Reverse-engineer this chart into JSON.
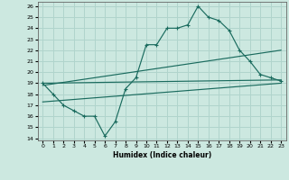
{
  "xlabel": "Humidex (Indice chaleur)",
  "bg_color": "#cce8e0",
  "grid_color": "#b0d4cc",
  "line_color": "#1a6b5e",
  "xlim": [
    -0.5,
    23.5
  ],
  "ylim": [
    13.8,
    26.4
  ],
  "xticks": [
    0,
    1,
    2,
    3,
    4,
    5,
    6,
    7,
    8,
    9,
    10,
    11,
    12,
    13,
    14,
    15,
    16,
    17,
    18,
    19,
    20,
    21,
    22,
    23
  ],
  "yticks": [
    14,
    15,
    16,
    17,
    18,
    19,
    20,
    21,
    22,
    23,
    24,
    25,
    26
  ],
  "line1_x": [
    0,
    1,
    2,
    3,
    4,
    5,
    6,
    7,
    8,
    9,
    10,
    11,
    12,
    13,
    14,
    15,
    16,
    17,
    18,
    19,
    20,
    21,
    22,
    23
  ],
  "line1_y": [
    19,
    18,
    17,
    16.5,
    16,
    16,
    14.2,
    15.5,
    18.5,
    19.5,
    22.5,
    22.5,
    24,
    24,
    24.3,
    26,
    25,
    24.7,
    23.8,
    22,
    21,
    19.8,
    19.5,
    19.2
  ],
  "line2_x": [
    0,
    23
  ],
  "line2_y": [
    19.0,
    19.3
  ],
  "line3_x": [
    0,
    23
  ],
  "line3_y": [
    17.3,
    19.0
  ],
  "line4_x": [
    0,
    23
  ],
  "line4_y": [
    18.8,
    22.0
  ]
}
